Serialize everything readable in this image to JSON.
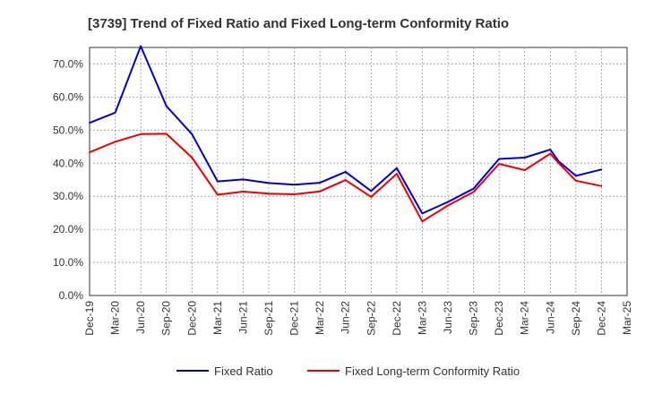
{
  "chart_data": {
    "type": "line",
    "title": "[3739]  Trend of Fixed Ratio and Fixed Long-term Conformity Ratio",
    "xlabel": "",
    "ylabel": "",
    "ylim": [
      0,
      75
    ],
    "yticks": [
      "0.0%",
      "10.0%",
      "20.0%",
      "30.0%",
      "40.0%",
      "50.0%",
      "60.0%",
      "70.0%"
    ],
    "ytick_values": [
      0,
      10,
      20,
      30,
      40,
      50,
      60,
      70
    ],
    "x_tick_labels": [
      "Dec-19",
      "Mar-20",
      "Jun-20",
      "Sep-20",
      "Dec-20",
      "Mar-21",
      "Jun-21",
      "Sep-21",
      "Dec-21",
      "Mar-22",
      "Jun-22",
      "Sep-22",
      "Dec-22",
      "Mar-23",
      "Jun-23",
      "Sep-23",
      "Dec-23",
      "Mar-24",
      "Jun-24",
      "Sep-24",
      "Dec-24",
      "Mar-25"
    ],
    "grid": true,
    "legend_position": "bottom",
    "series": [
      {
        "name": "Fixed Ratio",
        "color": "#0000cc",
        "x": [
          "Dec-19",
          "Mar-20",
          "Jun-20",
          "Sep-20",
          "Dec-20",
          "Mar-21",
          "Jun-21",
          "Sep-21",
          "Dec-21",
          "Mar-22",
          "Jun-22",
          "Sep-22",
          "Dec-22",
          "Mar-23",
          "Jun-23",
          "Sep-23",
          "Dec-23",
          "Mar-24",
          "Jun-24",
          "Jul-24",
          "Sep-24",
          "Dec-24"
        ],
        "values": [
          52.2,
          55.3,
          75.4,
          57.3,
          48.8,
          34.5,
          35.1,
          34.0,
          33.5,
          34.1,
          37.4,
          31.6,
          38.5,
          24.8,
          28.3,
          32.3,
          41.3,
          41.7,
          44.1,
          40.5,
          36.2,
          38.1
        ]
      },
      {
        "name": "Fixed Long-term Conformity Ratio",
        "color": "#ee0000",
        "x": [
          "Dec-19",
          "Mar-20",
          "Jun-20",
          "Sep-20",
          "Dec-20",
          "Mar-21",
          "Jun-21",
          "Sep-21",
          "Dec-21",
          "Mar-22",
          "Jun-22",
          "Sep-22",
          "Dec-22",
          "Mar-23",
          "Jun-23",
          "Sep-23",
          "Dec-23",
          "Mar-24",
          "Jun-24",
          "Jul-24",
          "Sep-24",
          "Dec-24"
        ],
        "values": [
          43.3,
          46.5,
          48.8,
          48.9,
          41.7,
          30.5,
          31.4,
          30.8,
          30.6,
          31.5,
          34.9,
          29.8,
          36.8,
          22.4,
          27.2,
          31.3,
          39.8,
          37.9,
          42.9,
          40.0,
          34.7,
          33.1
        ]
      }
    ]
  }
}
